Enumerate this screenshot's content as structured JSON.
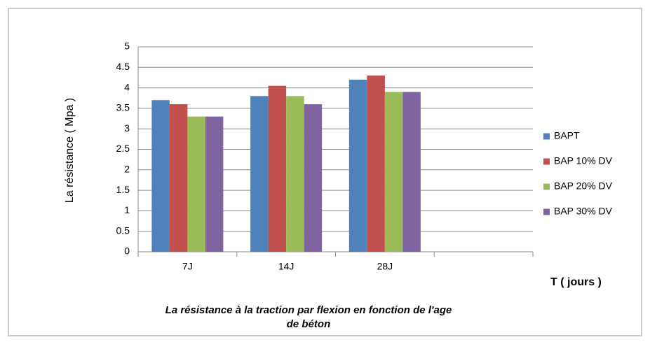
{
  "chart_data": {
    "type": "bar",
    "title": "La résistance à la traction par flexion en fonction de l'age de béton",
    "xlabel": "T ( jours )",
    "ylabel": "La résistance ( Mpa )",
    "categories": [
      "7J",
      "14J",
      "28J",
      null
    ],
    "series": [
      {
        "name": "BAPT",
        "color": "#4f81bd",
        "values": [
          3.7,
          3.8,
          4.2,
          null
        ]
      },
      {
        "name": "BAP 10% DV",
        "color": "#c0504d",
        "values": [
          3.6,
          4.05,
          4.3,
          null
        ]
      },
      {
        "name": "BAP 20% DV",
        "color": "#9bbb59",
        "values": [
          3.3,
          3.8,
          3.9,
          null
        ]
      },
      {
        "name": "BAP 30% DV",
        "color": "#8064a2",
        "values": [
          3.3,
          3.6,
          3.9,
          null
        ]
      }
    ],
    "ylim": [
      0,
      5
    ],
    "yticks": [
      0,
      0.5,
      1,
      1.5,
      2,
      2.5,
      3,
      3.5,
      4,
      4.5,
      5
    ],
    "grid": true,
    "legend": "right"
  }
}
